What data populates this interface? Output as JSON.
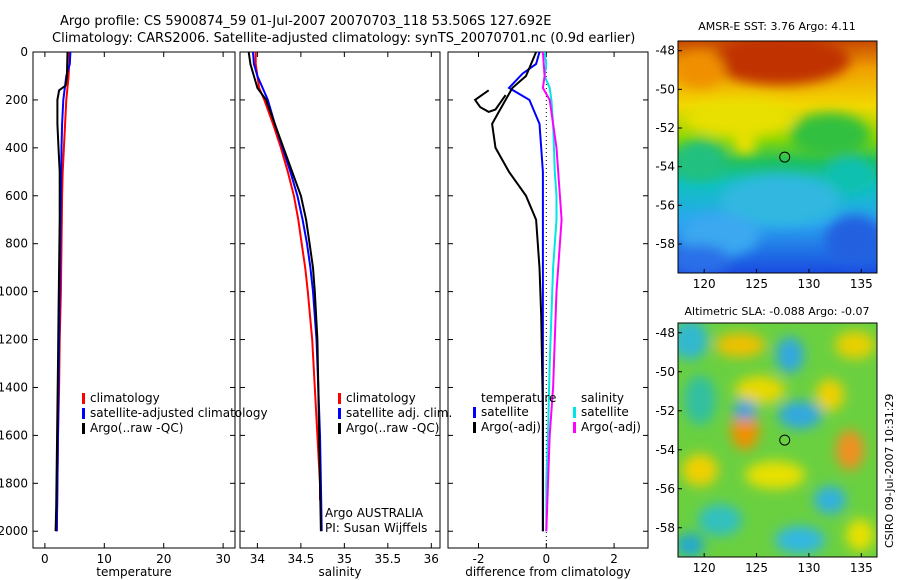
{
  "title_line1": "Argo profile: CS 5900874_59 01-Jul-2007 20070703_118 53.506S 127.692E",
  "title_line2": "Climatology: CARS2006. Satellite-adjusted climatology: synTS_20070701.nc (0.9d earlier)",
  "footer_vertical": "CSIRO 09-Jul-2007 10:31:29",
  "colors": {
    "red": "#ff0000",
    "blue": "#0000ff",
    "black": "#000000",
    "cyan": "#00e5e5",
    "magenta": "#ff00ff"
  },
  "chart_data": [
    {
      "type": "line",
      "id": "temperature",
      "xlabel": "temperature",
      "xlim": [
        -2,
        32
      ],
      "ylim": [
        0,
        2070
      ],
      "y_reversed": true,
      "xticks": [
        0,
        10,
        20,
        30
      ],
      "yticks": [
        0,
        200,
        400,
        600,
        800,
        1000,
        1200,
        1400,
        1600,
        1800,
        2000
      ],
      "legend": [
        "climatology",
        "satellite-adjusted climatology",
        "Argo(..raw -QC)"
      ],
      "series": [
        {
          "name": "climatology",
          "color": "red",
          "points": [
            [
              4.1,
              0
            ],
            [
              4.1,
              50
            ],
            [
              4.0,
              100
            ],
            [
              3.6,
              200
            ],
            [
              3.4,
              300
            ],
            [
              3.2,
              400
            ],
            [
              3.0,
              500
            ],
            [
              2.9,
              600
            ],
            [
              2.8,
              800
            ],
            [
              2.7,
              1000
            ],
            [
              2.5,
              1200
            ],
            [
              2.4,
              1400
            ],
            [
              2.2,
              1600
            ],
            [
              2.1,
              1800
            ],
            [
              2.0,
              2000
            ]
          ]
        },
        {
          "name": "satellite-adjusted climatology",
          "color": "blue",
          "points": [
            [
              4.3,
              0
            ],
            [
              4.2,
              50
            ],
            [
              3.6,
              100
            ],
            [
              3.1,
              200
            ],
            [
              2.9,
              300
            ],
            [
              2.8,
              400
            ],
            [
              2.7,
              600
            ],
            [
              2.6,
              800
            ],
            [
              2.5,
              1000
            ],
            [
              2.4,
              1200
            ],
            [
              2.3,
              1400
            ],
            [
              2.2,
              1600
            ],
            [
              2.1,
              1800
            ],
            [
              2.0,
              2000
            ]
          ]
        },
        {
          "name": "Argo(..raw -QC)",
          "color": "black",
          "points": [
            [
              3.8,
              0
            ],
            [
              3.7,
              100
            ],
            [
              3.5,
              140
            ],
            [
              2.4,
              160
            ],
            [
              2.1,
              200
            ],
            [
              2.1,
              300
            ],
            [
              2.3,
              400
            ],
            [
              2.5,
              500
            ],
            [
              2.5,
              700
            ],
            [
              2.4,
              900
            ],
            [
              2.3,
              1100
            ],
            [
              2.2,
              1300
            ],
            [
              2.1,
              1500
            ],
            [
              2.0,
              1700
            ],
            [
              1.9,
              1900
            ],
            [
              1.8,
              2000
            ]
          ]
        }
      ]
    },
    {
      "type": "line",
      "id": "salinity",
      "xlabel": "salinity",
      "xlim": [
        33.8,
        36.1
      ],
      "ylim": [
        0,
        2070
      ],
      "y_reversed": true,
      "xticks": [
        34,
        34.5,
        35,
        35.5,
        36
      ],
      "yticks": [
        0,
        200,
        400,
        600,
        800,
        1000,
        1200,
        1400,
        1600,
        1800,
        2000
      ],
      "legend": [
        "climatology",
        "satellite adj. clim.",
        "Argo(..raw -QC)"
      ],
      "annotations": [
        "Argo AUSTRALIA",
        "PI: Susan Wijffels"
      ],
      "series": [
        {
          "name": "climatology",
          "color": "red",
          "points": [
            [
              33.98,
              0
            ],
            [
              33.98,
              50
            ],
            [
              34.0,
              100
            ],
            [
              34.02,
              150
            ],
            [
              34.08,
              200
            ],
            [
              34.18,
              300
            ],
            [
              34.27,
              400
            ],
            [
              34.35,
              500
            ],
            [
              34.42,
              600
            ],
            [
              34.47,
              700
            ],
            [
              34.51,
              800
            ],
            [
              34.55,
              900
            ],
            [
              34.58,
              1000
            ],
            [
              34.63,
              1200
            ],
            [
              34.66,
              1400
            ],
            [
              34.69,
              1600
            ],
            [
              34.72,
              1800
            ],
            [
              34.72,
              1870
            ]
          ]
        },
        {
          "name": "satellite adj. clim.",
          "color": "blue",
          "points": [
            [
              33.95,
              0
            ],
            [
              33.96,
              50
            ],
            [
              34.0,
              100
            ],
            [
              34.06,
              150
            ],
            [
              34.12,
              200
            ],
            [
              34.2,
              300
            ],
            [
              34.29,
              400
            ],
            [
              34.38,
              500
            ],
            [
              34.46,
              600
            ],
            [
              34.52,
              700
            ],
            [
              34.57,
              800
            ],
            [
              34.61,
              900
            ],
            [
              34.64,
              1000
            ],
            [
              34.68,
              1200
            ],
            [
              34.7,
              1400
            ],
            [
              34.72,
              1600
            ],
            [
              34.73,
              1800
            ],
            [
              34.74,
              2000
            ]
          ]
        },
        {
          "name": "Argo(..raw -QC)",
          "color": "black",
          "points": [
            [
              33.9,
              0
            ],
            [
              33.92,
              50
            ],
            [
              33.96,
              100
            ],
            [
              34.0,
              150
            ],
            [
              34.1,
              200
            ],
            [
              34.2,
              300
            ],
            [
              34.3,
              400
            ],
            [
              34.4,
              500
            ],
            [
              34.5,
              600
            ],
            [
              34.56,
              700
            ],
            [
              34.6,
              800
            ],
            [
              34.64,
              900
            ],
            [
              34.66,
              1000
            ],
            [
              34.69,
              1200
            ],
            [
              34.7,
              1400
            ],
            [
              34.71,
              1600
            ],
            [
              34.72,
              1800
            ],
            [
              34.73,
              2000
            ]
          ]
        }
      ]
    },
    {
      "type": "line",
      "id": "difference",
      "xlabel": "difference from climatology",
      "xlim": [
        -2.9,
        3.0
      ],
      "ylim": [
        0,
        2070
      ],
      "y_reversed": true,
      "xticks": [
        -2,
        0,
        2
      ],
      "yticks": [
        0,
        200,
        400,
        600,
        800,
        1000,
        1200,
        1400,
        1600,
        1800,
        2000
      ],
      "legend_temperature_title": "temperature",
      "legend_salinity_title": "salinity",
      "legend": [
        "satellite",
        "Argo(-adj)",
        "satellite",
        "Argo(-adj)"
      ],
      "series": [
        {
          "name": "temperature satellite",
          "color": "blue",
          "points": [
            [
              -0.2,
              0
            ],
            [
              -0.3,
              50
            ],
            [
              -0.7,
              90
            ],
            [
              -1.1,
              150
            ],
            [
              -0.5,
              200
            ],
            [
              -0.2,
              300
            ],
            [
              -0.1,
              500
            ],
            [
              -0.1,
              700
            ],
            [
              -0.1,
              900
            ],
            [
              -0.1,
              1100
            ],
            [
              -0.1,
              1500
            ],
            [
              -0.1,
              2000
            ]
          ]
        },
        {
          "name": "temperature Argo(-adj)",
          "color": "black",
          "points": [
            [
              -0.3,
              0
            ],
            [
              -0.6,
              100
            ],
            [
              -1.0,
              150
            ],
            [
              -1.2,
              200
            ],
            [
              -1.4,
              250
            ],
            [
              -1.6,
              300
            ],
            [
              -1.5,
              400
            ],
            [
              -1.1,
              500
            ],
            [
              -0.6,
              600
            ],
            [
              -0.3,
              700
            ],
            [
              -0.2,
              900
            ],
            [
              -0.15,
              1100
            ],
            [
              -0.1,
              1500
            ],
            [
              -0.1,
              2000
            ]
          ]
        },
        {
          "name": "salinity satellite",
          "color": "cyan",
          "points": [
            [
              -0.05,
              0
            ],
            [
              0.0,
              50
            ],
            [
              -0.05,
              100
            ],
            [
              0.1,
              150
            ],
            [
              0.15,
              200
            ],
            [
              0.2,
              300
            ],
            [
              0.25,
              500
            ],
            [
              0.3,
              600
            ],
            [
              0.3,
              700
            ],
            [
              0.25,
              800
            ],
            [
              0.2,
              900
            ],
            [
              0.15,
              1100
            ],
            [
              0.1,
              1300
            ],
            [
              0.05,
              1600
            ],
            [
              0.0,
              1800
            ],
            [
              0.0,
              2000
            ]
          ]
        },
        {
          "name": "salinity Argo(-adj)",
          "color": "magenta",
          "points": [
            [
              -0.1,
              0
            ],
            [
              -0.05,
              100
            ],
            [
              -0.1,
              150
            ],
            [
              0.1,
              200
            ],
            [
              0.2,
              300
            ],
            [
              0.3,
              400
            ],
            [
              0.35,
              500
            ],
            [
              0.4,
              600
            ],
            [
              0.45,
              700
            ],
            [
              0.4,
              800
            ],
            [
              0.35,
              900
            ],
            [
              0.3,
              1000
            ],
            [
              0.25,
              1200
            ],
            [
              0.2,
              1400
            ],
            [
              0.1,
              1600
            ],
            [
              0.05,
              1800
            ],
            [
              0.0,
              2000
            ]
          ]
        },
        {
          "name": "temperature surface trace",
          "color": "black",
          "points": [
            [
              -1.7,
              160
            ],
            [
              -1.9,
              180
            ],
            [
              -2.1,
              200
            ],
            [
              -1.95,
              230
            ],
            [
              -1.7,
              250
            ],
            [
              -1.5,
              240
            ],
            [
              -1.3,
              200
            ],
            [
              -1.2,
              180
            ]
          ]
        }
      ]
    },
    {
      "type": "heatmap",
      "id": "sst_map",
      "title": "AMSR-E SST: 3.76 Argo: 4.11",
      "xlim": [
        117.5,
        136.5
      ],
      "ylim": [
        -59.5,
        -47.5
      ],
      "xticks": [
        120,
        125,
        130,
        135
      ],
      "yticks": [
        -48,
        -50,
        -52,
        -54,
        -56,
        -58
      ],
      "marker": [
        127.692,
        -53.506
      ]
    },
    {
      "type": "heatmap",
      "id": "sla_map",
      "title": "Altimetric SLA: -0.088 Argo: -0.07",
      "xlim": [
        117.5,
        136.5
      ],
      "ylim": [
        -59.5,
        -47.5
      ],
      "xticks": [
        120,
        125,
        130,
        135
      ],
      "yticks": [
        -48,
        -50,
        -52,
        -54,
        -56,
        -58
      ],
      "marker": [
        127.692,
        -53.506
      ]
    }
  ]
}
